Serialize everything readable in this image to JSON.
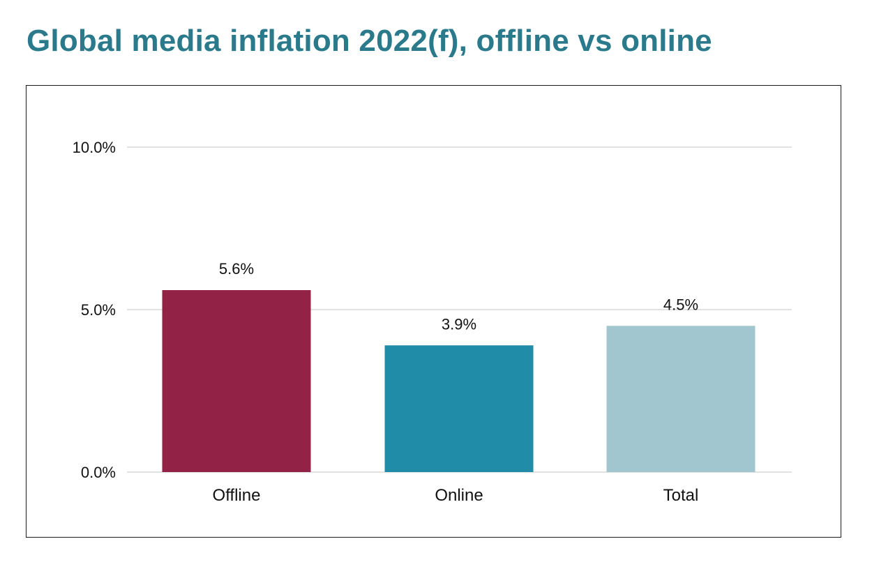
{
  "chart_data": {
    "type": "bar",
    "title": "Global media inflation 2022(f), offline vs online",
    "categories": [
      "Offline",
      "Online",
      "Total"
    ],
    "values": [
      5.6,
      3.9,
      4.5
    ],
    "value_labels": [
      "5.6%",
      "3.9%",
      "4.5%"
    ],
    "bar_colors": [
      "#922347",
      "#218ca7",
      "#a2c6cf"
    ],
    "ylim": [
      0,
      10
    ],
    "yticks": [
      0,
      5,
      10
    ],
    "ytick_labels": [
      "0.0%",
      "5.0%",
      "10.0%"
    ],
    "xlabel": "",
    "ylabel": "",
    "grid": true,
    "legend": "none"
  },
  "colors": {
    "title": "#2a7a8c",
    "grid": "#e2e2e2",
    "frame": "#1a1a1a"
  }
}
